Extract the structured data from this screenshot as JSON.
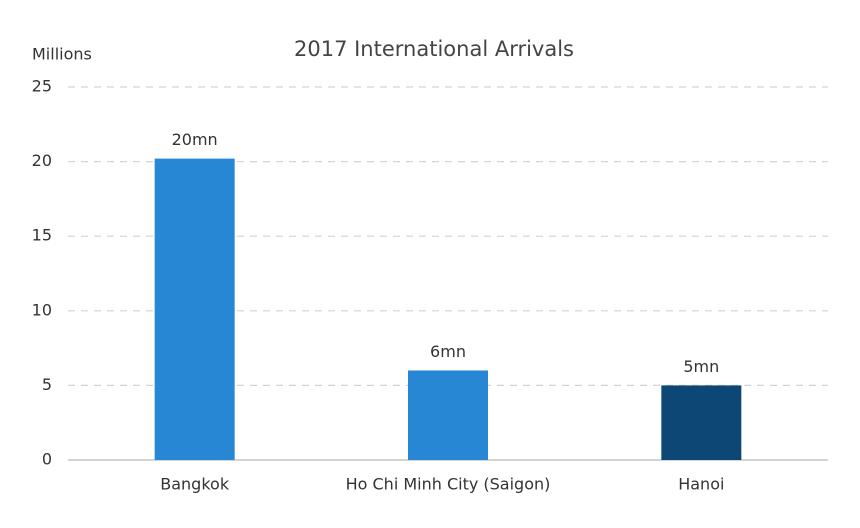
{
  "chart_data": {
    "type": "bar",
    "title": "2017 International Arrivals",
    "y_label": "Millions",
    "categories": [
      "Bangkok",
      "Ho Chi Minh City (Saigon)",
      "Hanoi"
    ],
    "values": [
      20.2,
      6,
      5
    ],
    "value_labels": [
      "20mn",
      "6mn",
      "5mn"
    ],
    "colors": [
      "#2887d4",
      "#2887d4",
      "#0c4775"
    ],
    "ylim": [
      0,
      25
    ],
    "yticks": [
      0,
      5,
      10,
      15,
      20,
      25
    ],
    "grid": true
  }
}
